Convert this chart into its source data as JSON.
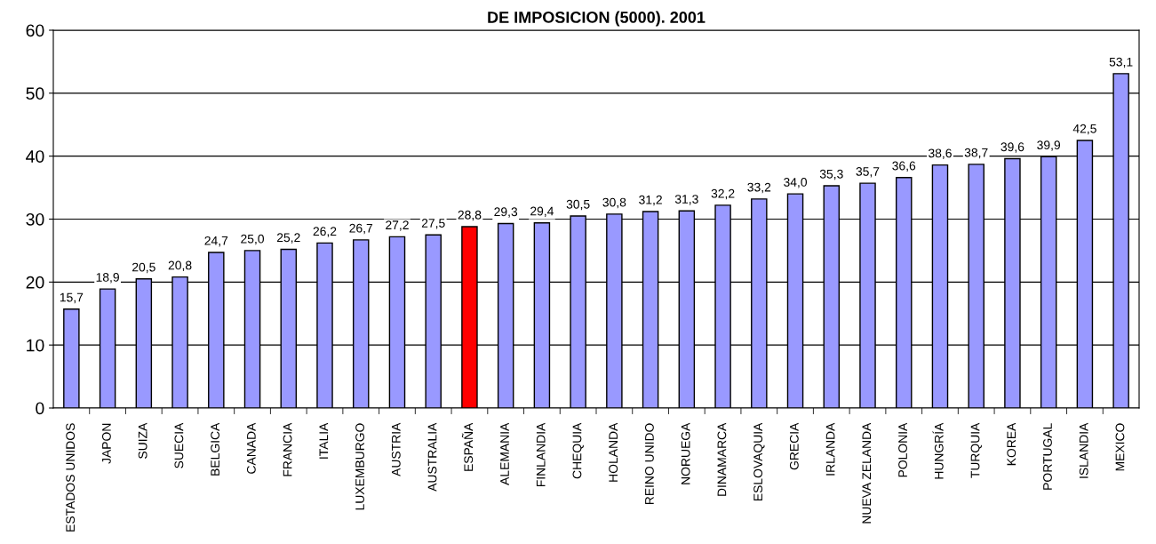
{
  "chart_data": {
    "type": "bar",
    "title": "DE IMPOSICION (5000). 2001",
    "categories": [
      "ESTADOS UNIDOS",
      "JAPON",
      "SUIZA",
      "SUECIA",
      "BELGICA",
      "CANADA",
      "FRANCIA",
      "ITALIA",
      "LUXEMBURGO",
      "AUSTRIA",
      "AUSTRALIA",
      "ESPAÑA",
      "ALEMANIA",
      "FINLANDIA",
      "CHEQUIA",
      "HOLANDA",
      "REINO UNIDO",
      "NORUEGA",
      "DINAMARCA",
      "ESLOVAQUIA",
      "GRECIA",
      "IRLANDA",
      "NUEVA ZELANDA",
      "POLONIA",
      "HUNGRÍA",
      "TURQUIA",
      "KOREA",
      "PORTUGAL",
      "ISLANDIA",
      "MEXICO"
    ],
    "values": [
      15.7,
      18.9,
      20.5,
      20.8,
      24.7,
      25.0,
      25.2,
      26.2,
      26.7,
      27.2,
      27.5,
      28.8,
      29.3,
      29.4,
      30.5,
      30.8,
      31.2,
      31.3,
      32.2,
      33.2,
      34.0,
      35.3,
      35.7,
      36.6,
      38.6,
      38.7,
      39.6,
      39.9,
      42.5,
      53.1
    ],
    "value_labels": [
      "15,7",
      "18,9",
      "20,5",
      "20,8",
      "24,7",
      "25,0",
      "25,2",
      "26,2",
      "26,7",
      "27,2",
      "27,5",
      "28,8",
      "29,3",
      "29,4",
      "30,5",
      "30,8",
      "31,2",
      "31,3",
      "32,2",
      "33,2",
      "34,0",
      "35,3",
      "35,7",
      "36,6",
      "38,6",
      "38,7",
      "39,6",
      "39,9",
      "42,5",
      "53,1"
    ],
    "colors": [
      "#9999ff",
      "#9999ff",
      "#9999ff",
      "#9999ff",
      "#9999ff",
      "#9999ff",
      "#9999ff",
      "#9999ff",
      "#9999ff",
      "#9999ff",
      "#9999ff",
      "#ff0000",
      "#9999ff",
      "#9999ff",
      "#9999ff",
      "#9999ff",
      "#9999ff",
      "#9999ff",
      "#9999ff",
      "#9999ff",
      "#9999ff",
      "#9999ff",
      "#9999ff",
      "#9999ff",
      "#9999ff",
      "#9999ff",
      "#9999ff",
      "#9999ff",
      "#9999ff",
      "#9999ff"
    ],
    "ylim": [
      0,
      60
    ],
    "yticks": [
      0,
      10,
      20,
      30,
      40,
      50,
      60
    ],
    "grid": "y",
    "legend": false
  }
}
